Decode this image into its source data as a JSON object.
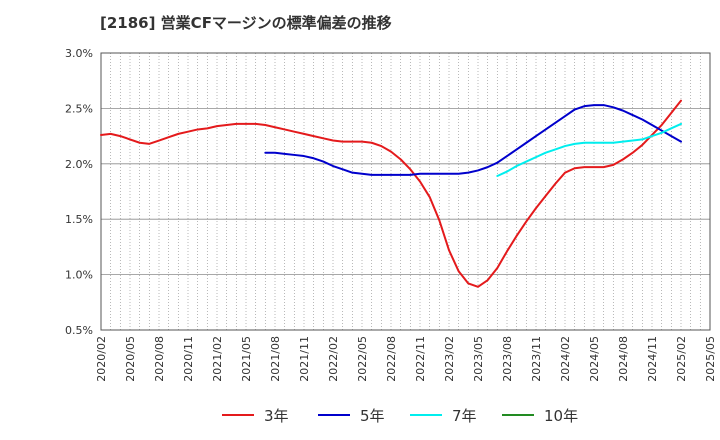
{
  "title": "[2186]  営業CFマージンの標準偏差の推移",
  "chart_data": {
    "type": "line",
    "y_unit": "%",
    "ylim": [
      0.5,
      3.0
    ],
    "yticks": [
      0.5,
      1.0,
      1.5,
      2.0,
      2.5,
      3.0
    ],
    "ytick_labels": [
      "0.5%",
      "1.0%",
      "1.5%",
      "2.0%",
      "2.5%",
      "3.0%"
    ],
    "xlim": [
      "2020-02",
      "2025-05"
    ],
    "xtick_labels": [
      "2020/02",
      "2020/05",
      "2020/08",
      "2020/11",
      "2021/02",
      "2021/05",
      "2021/08",
      "2021/11",
      "2022/02",
      "2022/05",
      "2022/08",
      "2022/11",
      "2023/02",
      "2023/05",
      "2023/08",
      "2023/11",
      "2024/02",
      "2024/05",
      "2024/08",
      "2024/11",
      "2025/02",
      "2025/05"
    ],
    "grid": true,
    "legend_position": "bottom",
    "series": [
      {
        "name": "3年",
        "color": "#e41a1c",
        "points": [
          [
            "2020-02",
            2.26
          ],
          [
            "2020-03",
            2.27
          ],
          [
            "2020-04",
            2.25
          ],
          [
            "2020-05",
            2.22
          ],
          [
            "2020-06",
            2.19
          ],
          [
            "2020-07",
            2.18
          ],
          [
            "2020-08",
            2.21
          ],
          [
            "2020-09",
            2.24
          ],
          [
            "2020-10",
            2.27
          ],
          [
            "2020-11",
            2.29
          ],
          [
            "2020-12",
            2.31
          ],
          [
            "2021-01",
            2.32
          ],
          [
            "2021-02",
            2.34
          ],
          [
            "2021-03",
            2.35
          ],
          [
            "2021-04",
            2.36
          ],
          [
            "2021-05",
            2.36
          ],
          [
            "2021-06",
            2.36
          ],
          [
            "2021-07",
            2.35
          ],
          [
            "2021-08",
            2.33
          ],
          [
            "2021-09",
            2.31
          ],
          [
            "2021-10",
            2.29
          ],
          [
            "2021-11",
            2.27
          ],
          [
            "2021-12",
            2.25
          ],
          [
            "2022-01",
            2.23
          ],
          [
            "2022-02",
            2.21
          ],
          [
            "2022-03",
            2.2
          ],
          [
            "2022-04",
            2.2
          ],
          [
            "2022-05",
            2.2
          ],
          [
            "2022-06",
            2.19
          ],
          [
            "2022-07",
            2.16
          ],
          [
            "2022-08",
            2.11
          ],
          [
            "2022-09",
            2.04
          ],
          [
            "2022-10",
            1.95
          ],
          [
            "2022-11",
            1.84
          ],
          [
            "2022-12",
            1.7
          ],
          [
            "2023-01",
            1.49
          ],
          [
            "2023-02",
            1.22
          ],
          [
            "2023-03",
            1.03
          ],
          [
            "2023-04",
            0.92
          ],
          [
            "2023-05",
            0.89
          ],
          [
            "2023-06",
            0.95
          ],
          [
            "2023-07",
            1.06
          ],
          [
            "2023-08",
            1.21
          ],
          [
            "2023-09",
            1.35
          ],
          [
            "2023-10",
            1.48
          ],
          [
            "2023-11",
            1.6
          ],
          [
            "2023-12",
            1.71
          ],
          [
            "2024-01",
            1.82
          ],
          [
            "2024-02",
            1.92
          ],
          [
            "2024-03",
            1.96
          ],
          [
            "2024-04",
            1.97
          ],
          [
            "2024-05",
            1.97
          ],
          [
            "2024-06",
            1.97
          ],
          [
            "2024-07",
            1.99
          ],
          [
            "2024-08",
            2.04
          ],
          [
            "2024-09",
            2.1
          ],
          [
            "2024-10",
            2.17
          ],
          [
            "2024-11",
            2.26
          ],
          [
            "2024-12",
            2.35
          ],
          [
            "2025-01",
            2.46
          ],
          [
            "2025-02",
            2.57
          ]
        ]
      },
      {
        "name": "5年",
        "color": "#0000cc",
        "points": [
          [
            "2021-07",
            2.1
          ],
          [
            "2021-08",
            2.1
          ],
          [
            "2021-09",
            2.09
          ],
          [
            "2021-10",
            2.08
          ],
          [
            "2021-11",
            2.07
          ],
          [
            "2021-12",
            2.05
          ],
          [
            "2022-01",
            2.02
          ],
          [
            "2022-02",
            1.98
          ],
          [
            "2022-03",
            1.95
          ],
          [
            "2022-04",
            1.92
          ],
          [
            "2022-05",
            1.91
          ],
          [
            "2022-06",
            1.9
          ],
          [
            "2022-07",
            1.9
          ],
          [
            "2022-08",
            1.9
          ],
          [
            "2022-09",
            1.9
          ],
          [
            "2022-10",
            1.9
          ],
          [
            "2022-11",
            1.91
          ],
          [
            "2022-12",
            1.91
          ],
          [
            "2023-01",
            1.91
          ],
          [
            "2023-02",
            1.91
          ],
          [
            "2023-03",
            1.91
          ],
          [
            "2023-04",
            1.92
          ],
          [
            "2023-05",
            1.94
          ],
          [
            "2023-06",
            1.97
          ],
          [
            "2023-07",
            2.01
          ],
          [
            "2023-08",
            2.07
          ],
          [
            "2023-09",
            2.13
          ],
          [
            "2023-10",
            2.19
          ],
          [
            "2023-11",
            2.25
          ],
          [
            "2023-12",
            2.31
          ],
          [
            "2024-01",
            2.37
          ],
          [
            "2024-02",
            2.43
          ],
          [
            "2024-03",
            2.49
          ],
          [
            "2024-04",
            2.52
          ],
          [
            "2024-05",
            2.53
          ],
          [
            "2024-06",
            2.53
          ],
          [
            "2024-07",
            2.51
          ],
          [
            "2024-08",
            2.48
          ],
          [
            "2024-09",
            2.44
          ],
          [
            "2024-10",
            2.4
          ],
          [
            "2024-11",
            2.35
          ],
          [
            "2024-12",
            2.3
          ],
          [
            "2025-01",
            2.25
          ],
          [
            "2025-02",
            2.2
          ]
        ]
      },
      {
        "name": "7年",
        "color": "#00eeee",
        "points": [
          [
            "2023-07",
            1.89
          ],
          [
            "2023-08",
            1.93
          ],
          [
            "2023-09",
            1.98
          ],
          [
            "2023-10",
            2.02
          ],
          [
            "2023-11",
            2.06
          ],
          [
            "2023-12",
            2.1
          ],
          [
            "2024-01",
            2.13
          ],
          [
            "2024-02",
            2.16
          ],
          [
            "2024-03",
            2.18
          ],
          [
            "2024-04",
            2.19
          ],
          [
            "2024-05",
            2.19
          ],
          [
            "2024-06",
            2.19
          ],
          [
            "2024-07",
            2.19
          ],
          [
            "2024-08",
            2.2
          ],
          [
            "2024-09",
            2.21
          ],
          [
            "2024-10",
            2.22
          ],
          [
            "2024-11",
            2.25
          ],
          [
            "2024-12",
            2.28
          ],
          [
            "2025-01",
            2.32
          ],
          [
            "2025-02",
            2.36
          ]
        ]
      },
      {
        "name": "10年",
        "color": "#228b22",
        "points": []
      }
    ]
  }
}
